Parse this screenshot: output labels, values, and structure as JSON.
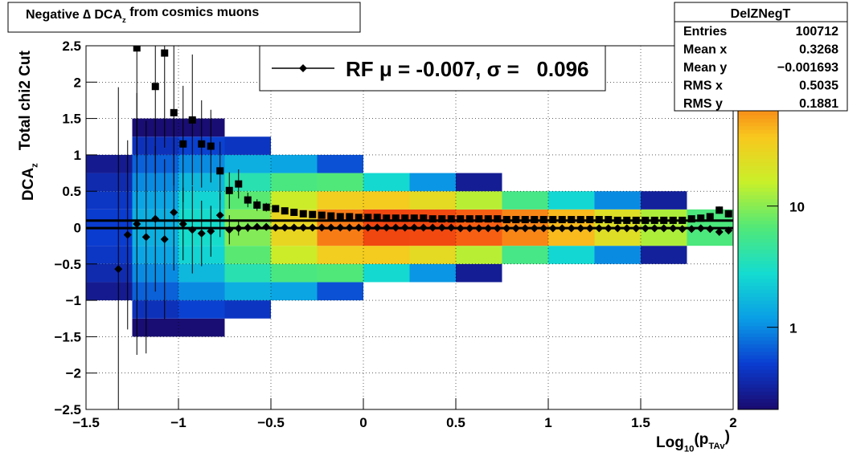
{
  "chart_data": {
    "type": "heatmap",
    "title_parts": [
      {
        "text": "Negative ∆ DCA"
      },
      {
        "text": "z",
        "sub": true
      },
      {
        "text": " from cosmics muons"
      }
    ],
    "x_label_parts": [
      {
        "text": "Log"
      },
      {
        "text": "10",
        "sub": true
      },
      {
        "text": "(p"
      },
      {
        "text": "TAv",
        "sub": true
      },
      {
        "text": ")"
      }
    ],
    "y_label_parts": [
      {
        "text": "DCA"
      },
      {
        "text": "z",
        "sub": true
      },
      {
        "text": "   Total chi2 Cut"
      }
    ],
    "xlim": [
      -1.5,
      2
    ],
    "ylim": [
      -2.5,
      2.5
    ],
    "zlim": [
      0.21,
      210
    ],
    "zlog": true,
    "grid": true,
    "xticks": [
      {
        "value": -1.5,
        "label": "−1.5"
      },
      {
        "value": -1,
        "label": "−1"
      },
      {
        "value": -0.5,
        "label": "−0.5"
      },
      0,
      0.5,
      1,
      1.5,
      2
    ],
    "yticks": [
      {
        "value": -2.5,
        "label": "−2.5"
      },
      {
        "value": -2,
        "label": "−2"
      },
      {
        "value": -1.5,
        "label": "−1.5"
      },
      {
        "value": -1,
        "label": "−1"
      },
      {
        "value": -0.5,
        "label": "−0.5"
      },
      0,
      0.5,
      1,
      1.5,
      2,
      2.5
    ],
    "zticks": [
      1,
      10
    ],
    "palette": [
      "#1a0a6e",
      "#0a3cd0",
      "#0a9ee6",
      "#14dcd0",
      "#50e878",
      "#c8f02a",
      "#f8c81e",
      "#f86414",
      "#e61e0a"
    ],
    "xbins": [
      -1.5,
      -1.25,
      -1,
      -0.75,
      -0.5,
      -0.25,
      0,
      0.25,
      0.5,
      0.75,
      1,
      1.25,
      1.5,
      1.75,
      2
    ],
    "ybins": [
      -1.5,
      -1.25,
      -1,
      -0.75,
      -0.5,
      -0.25,
      0,
      0.25,
      0.5,
      0.75,
      1,
      1.25,
      1.5
    ],
    "z": [
      [
        0.11,
        0.22,
        0.22,
        0.09,
        0,
        0,
        0,
        0,
        0,
        0,
        0,
        0,
        0,
        0
      ],
      [
        0.19,
        0.41,
        0.52,
        0.44,
        0.17,
        0,
        0,
        0,
        0,
        0,
        0,
        0,
        0,
        0
      ],
      [
        0.28,
        0.69,
        1.0,
        1.5,
        1.3,
        0.6,
        0,
        0,
        0,
        0,
        0,
        0,
        0,
        0
      ],
      [
        0.37,
        1.0,
        1.7,
        3.8,
        6.1,
        6.6,
        2.7,
        1.1,
        0.29,
        0,
        0,
        0,
        0,
        0
      ],
      [
        0.45,
        1.3,
        2.5,
        7.1,
        17,
        33,
        35,
        26,
        14,
        5.8,
        2.6,
        1.0,
        0.31,
        0.16
      ],
      [
        0.5,
        1.5,
        2.9,
        9.6,
        28,
        72,
        128,
        123,
        94,
        66,
        42,
        23,
        13,
        6.3
      ],
      [
        0.5,
        1.5,
        2.9,
        9.6,
        28,
        72,
        128,
        123,
        94,
        66,
        42,
        23,
        13,
        6.3
      ],
      [
        0.45,
        1.3,
        2.5,
        7.1,
        17,
        33,
        35,
        26,
        14,
        5.8,
        2.6,
        1.0,
        0.31,
        0.16
      ],
      [
        0.37,
        1.0,
        1.7,
        3.8,
        6.1,
        6.6,
        2.7,
        1.1,
        0.29,
        0,
        0,
        0,
        0,
        0
      ],
      [
        0.28,
        0.69,
        1.0,
        1.5,
        1.3,
        0.6,
        0,
        0,
        0,
        0,
        0,
        0,
        0,
        0
      ],
      [
        0.19,
        0.41,
        0.52,
        0.44,
        0.17,
        0,
        0,
        0,
        0,
        0,
        0,
        0,
        0,
        0
      ],
      [
        0.11,
        0.22,
        0.22,
        0.09,
        0,
        0,
        0,
        0,
        0,
        0,
        0,
        0,
        0,
        0
      ]
    ],
    "x": [
      -1.325,
      -1.275,
      -1.225,
      -1.175,
      -1.125,
      -1.075,
      -1.025,
      -0.975,
      -0.925,
      -0.875,
      -0.825,
      -0.775,
      -0.725,
      -0.675,
      -0.625,
      -0.575,
      -0.525,
      -0.475,
      -0.425,
      -0.375,
      -0.325,
      -0.275,
      -0.225,
      -0.175,
      -0.125,
      -0.075,
      -0.025,
      0.025,
      0.075,
      0.125,
      0.175,
      0.225,
      0.275,
      0.325,
      0.375,
      0.425,
      0.475,
      0.525,
      0.575,
      0.625,
      0.675,
      0.725,
      0.775,
      0.825,
      0.875,
      0.925,
      0.975,
      1.025,
      1.075,
      1.125,
      1.175,
      1.225,
      1.275,
      1.325,
      1.375,
      1.425,
      1.475,
      1.525,
      1.575,
      1.625,
      1.675,
      1.725,
      1.775,
      1.825,
      1.875,
      1.925,
      1.975
    ],
    "series": [
      {
        "marker": "square",
        "color": "#000000",
        "values": [
          null,
          null,
          2.47,
          null,
          1.94,
          2.4,
          1.58,
          1.15,
          1.48,
          1.15,
          1.12,
          0.78,
          0.51,
          0.6,
          0.38,
          0.31,
          0.28,
          0.26,
          0.23,
          0.21,
          0.19,
          0.18,
          0.17,
          0.16,
          0.15,
          0.15,
          0.14,
          0.14,
          0.14,
          0.13,
          0.13,
          0.13,
          0.13,
          0.13,
          0.12,
          0.12,
          0.12,
          0.12,
          0.12,
          0.12,
          0.12,
          0.12,
          0.11,
          0.11,
          0.11,
          0.11,
          0.11,
          0.11,
          0.11,
          0.11,
          0.11,
          0.11,
          0.11,
          0.11,
          0.1,
          0.1,
          0.1,
          0.1,
          0.1,
          0.1,
          0.1,
          0.1,
          0.12,
          0.13,
          0.15,
          0.24,
          0.19
        ],
        "errors": [
          null,
          null,
          1.5,
          null,
          1.2,
          1.3,
          1.0,
          0.8,
          0.9,
          0.6,
          0.5,
          0.4,
          0.25,
          0.2,
          0.1,
          0.08,
          0.06,
          0.05,
          0.04,
          0.04,
          0.03,
          0.03,
          0.03,
          0.02,
          0.02,
          0.02,
          0.02,
          0.01,
          0.01,
          0.01,
          0.01,
          0.01,
          0.01,
          0.01,
          0.01,
          0.01,
          0.01,
          0.01,
          0.01,
          0.01,
          0.01,
          0.01,
          0.01,
          0.01,
          0.01,
          0.01,
          0.01,
          0.01,
          0.01,
          0.01,
          0.01,
          0.01,
          0.01,
          0.01,
          0.01,
          0.01,
          0.01,
          0.01,
          0.01,
          0.01,
          0.01,
          0.01,
          0.01,
          0.02,
          0.03,
          0.05,
          0.05
        ]
      },
      {
        "name": "RF μ = -0.007, σ =   0.096",
        "marker": "diamond",
        "color": "#000000",
        "values": [
          -0.57,
          -0.1,
          0.05,
          -0.13,
          0.12,
          -0.16,
          0.21,
          0.05,
          -0.03,
          -0.08,
          -0.05,
          0.17,
          -0.03,
          -0.01,
          0,
          0.01,
          0.01,
          0,
          0,
          0,
          0,
          0,
          0,
          0,
          0,
          0,
          0,
          0,
          0,
          0,
          0,
          0,
          0,
          0,
          0,
          0,
          0,
          -0.01,
          -0.01,
          -0.01,
          -0.01,
          -0.01,
          -0.01,
          -0.01,
          -0.01,
          -0.01,
          -0.01,
          -0.01,
          -0.01,
          -0.01,
          -0.01,
          -0.01,
          -0.01,
          -0.01,
          -0.01,
          -0.01,
          -0.01,
          -0.01,
          -0.01,
          -0.01,
          -0.01,
          -0.02,
          -0.02,
          -0.01,
          -0.02,
          -0.06,
          -0.04
        ],
        "errors": [
          2.5,
          1.3,
          1.8,
          1.6,
          1.0,
          1.1,
          0.8,
          0.5,
          0.6,
          0.45,
          0.35,
          0.3,
          0.2,
          0.1,
          0.06,
          0.05,
          0.04,
          0.03,
          0.03,
          0.02,
          0.02,
          0.02,
          0.02,
          0.02,
          0.01,
          0.01,
          0.01,
          0.01,
          0.01,
          0.01,
          0.01,
          0.01,
          0.01,
          0.01,
          0.01,
          0.01,
          0.01,
          0.01,
          0.01,
          0.01,
          0.01,
          0.01,
          0.01,
          0.01,
          0.01,
          0.01,
          0.01,
          0.01,
          0.01,
          0.01,
          0.01,
          0.01,
          0.01,
          0.01,
          0.01,
          0.01,
          0.01,
          0.01,
          0.01,
          0.01,
          0.01,
          0.01,
          0.01,
          0.02,
          0.03,
          0.05,
          0.05
        ]
      }
    ],
    "hlines": [
      -0.007,
      0.096
    ],
    "stats": {
      "title": "DelZNegT",
      "rows": [
        [
          "Entries",
          "100712"
        ],
        [
          "Mean x",
          "0.3268"
        ],
        [
          "Mean y",
          "−0.001693"
        ],
        [
          "RMS x",
          "0.5035"
        ],
        [
          "RMS y",
          "0.1881"
        ]
      ]
    }
  }
}
